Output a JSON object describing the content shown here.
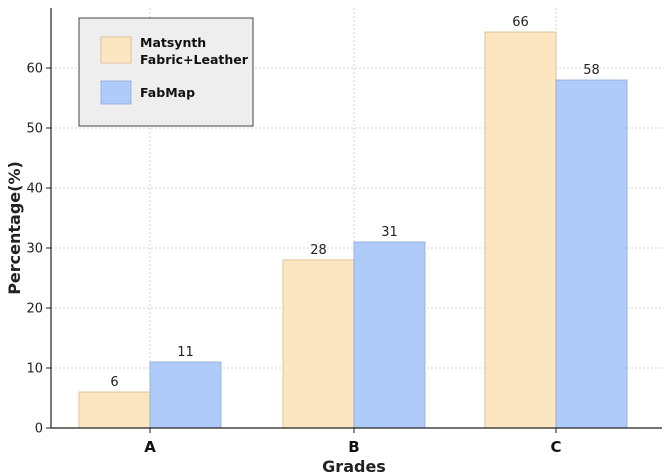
{
  "chart_data": {
    "type": "bar",
    "categories": [
      "A",
      "B",
      "C"
    ],
    "series": [
      {
        "name": "Matsynth\nFabric+Leather",
        "values": [
          6,
          28,
          66
        ],
        "color": "#fbe6c1",
        "edge": "#d9b98a"
      },
      {
        "name": "FabMap",
        "values": [
          11,
          31,
          58
        ],
        "color": "#aecbfa",
        "edge": "#8ea9d8"
      }
    ],
    "xlabel": "Grades",
    "ylabel": "Percentage(%)",
    "ylim": [
      0,
      70
    ],
    "yticks": [
      0,
      10,
      20,
      30,
      40,
      50,
      60
    ],
    "grid": true,
    "legend_position": "top-left",
    "data_labels": true
  }
}
